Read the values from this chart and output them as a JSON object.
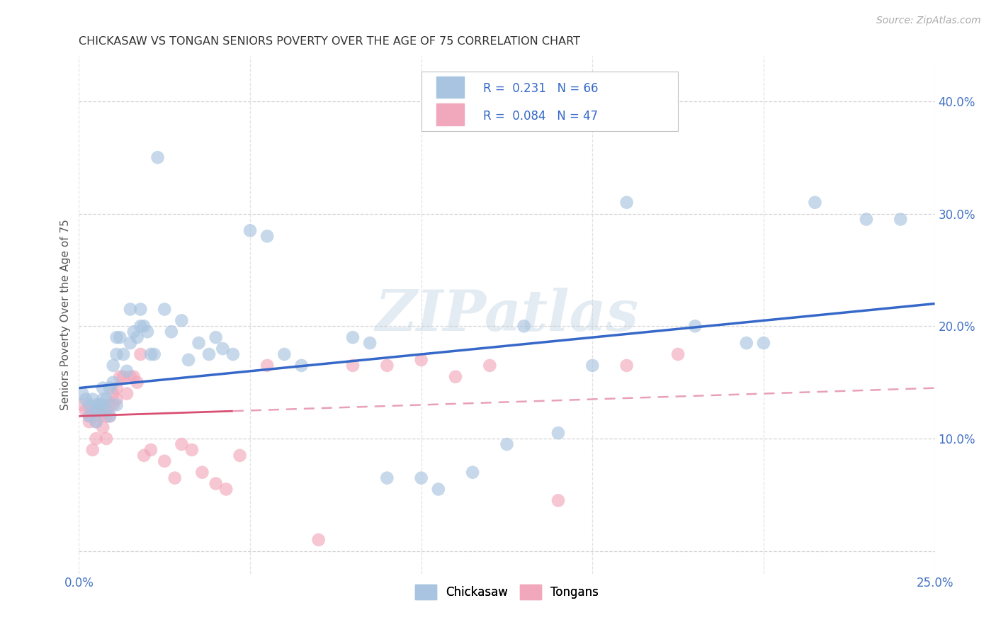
{
  "title": "CHICKASAW VS TONGAN SENIORS POVERTY OVER THE AGE OF 75 CORRELATION CHART",
  "source": "Source: ZipAtlas.com",
  "ylabel": "Seniors Poverty Over the Age of 75",
  "xlim": [
    0.0,
    0.25
  ],
  "ylim": [
    -0.02,
    0.44
  ],
  "xticks": [
    0.0,
    0.05,
    0.1,
    0.15,
    0.2,
    0.25
  ],
  "xticklabels": [
    "0.0%",
    "",
    "",
    "",
    "",
    "25.0%"
  ],
  "yticks": [
    0.0,
    0.1,
    0.2,
    0.3,
    0.4
  ],
  "yticklabels": [
    "",
    "10.0%",
    "20.0%",
    "30.0%",
    "40.0%"
  ],
  "chickasaw_R": 0.231,
  "chickasaw_N": 66,
  "tongan_R": 0.084,
  "tongan_N": 47,
  "chickasaw_color": "#a8c4e0",
  "tongan_color": "#f2a8bc",
  "chickasaw_line_color": "#3568c8",
  "tongan_line_color": "#d94f72",
  "tongan_dashed_color": "#e8a0b8",
  "background_color": "#ffffff",
  "grid_color": "#d0d0d0",
  "watermark": "ZIPatlas",
  "chickasaw_x": [
    0.001,
    0.002,
    0.003,
    0.003,
    0.004,
    0.005,
    0.005,
    0.005,
    0.006,
    0.006,
    0.007,
    0.007,
    0.007,
    0.008,
    0.008,
    0.009,
    0.009,
    0.01,
    0.01,
    0.011,
    0.011,
    0.011,
    0.012,
    0.013,
    0.014,
    0.015,
    0.015,
    0.016,
    0.017,
    0.018,
    0.018,
    0.019,
    0.02,
    0.021,
    0.022,
    0.023,
    0.025,
    0.027,
    0.03,
    0.032,
    0.035,
    0.038,
    0.04,
    0.042,
    0.045,
    0.05,
    0.055,
    0.06,
    0.065,
    0.08,
    0.085,
    0.09,
    0.1,
    0.105,
    0.115,
    0.125,
    0.13,
    0.14,
    0.15,
    0.16,
    0.18,
    0.195,
    0.2,
    0.215,
    0.23,
    0.24
  ],
  "chickasaw_y": [
    0.14,
    0.135,
    0.13,
    0.12,
    0.135,
    0.13,
    0.125,
    0.115,
    0.13,
    0.125,
    0.13,
    0.135,
    0.145,
    0.135,
    0.125,
    0.145,
    0.12,
    0.15,
    0.165,
    0.19,
    0.175,
    0.13,
    0.19,
    0.175,
    0.16,
    0.185,
    0.215,
    0.195,
    0.19,
    0.2,
    0.215,
    0.2,
    0.195,
    0.175,
    0.175,
    0.35,
    0.215,
    0.195,
    0.205,
    0.17,
    0.185,
    0.175,
    0.19,
    0.18,
    0.175,
    0.285,
    0.28,
    0.175,
    0.165,
    0.19,
    0.185,
    0.065,
    0.065,
    0.055,
    0.07,
    0.095,
    0.2,
    0.105,
    0.165,
    0.31,
    0.2,
    0.185,
    0.185,
    0.31,
    0.295,
    0.295
  ],
  "tongan_x": [
    0.001,
    0.002,
    0.003,
    0.003,
    0.004,
    0.004,
    0.005,
    0.005,
    0.006,
    0.006,
    0.007,
    0.007,
    0.008,
    0.008,
    0.009,
    0.009,
    0.01,
    0.01,
    0.011,
    0.011,
    0.012,
    0.013,
    0.014,
    0.015,
    0.016,
    0.017,
    0.018,
    0.019,
    0.021,
    0.025,
    0.028,
    0.03,
    0.033,
    0.036,
    0.04,
    0.043,
    0.047,
    0.055,
    0.07,
    0.08,
    0.09,
    0.1,
    0.11,
    0.12,
    0.14,
    0.16,
    0.175
  ],
  "tongan_y": [
    0.13,
    0.125,
    0.12,
    0.115,
    0.09,
    0.125,
    0.115,
    0.1,
    0.13,
    0.12,
    0.125,
    0.11,
    0.12,
    0.1,
    0.13,
    0.12,
    0.14,
    0.13,
    0.145,
    0.135,
    0.155,
    0.155,
    0.14,
    0.155,
    0.155,
    0.15,
    0.175,
    0.085,
    0.09,
    0.08,
    0.065,
    0.095,
    0.09,
    0.07,
    0.06,
    0.055,
    0.085,
    0.165,
    0.01,
    0.165,
    0.165,
    0.17,
    0.155,
    0.165,
    0.045,
    0.165,
    0.175
  ],
  "cs_intercept": 0.145,
  "cs_slope": 0.3,
  "t_intercept": 0.12,
  "t_slope": 0.1
}
